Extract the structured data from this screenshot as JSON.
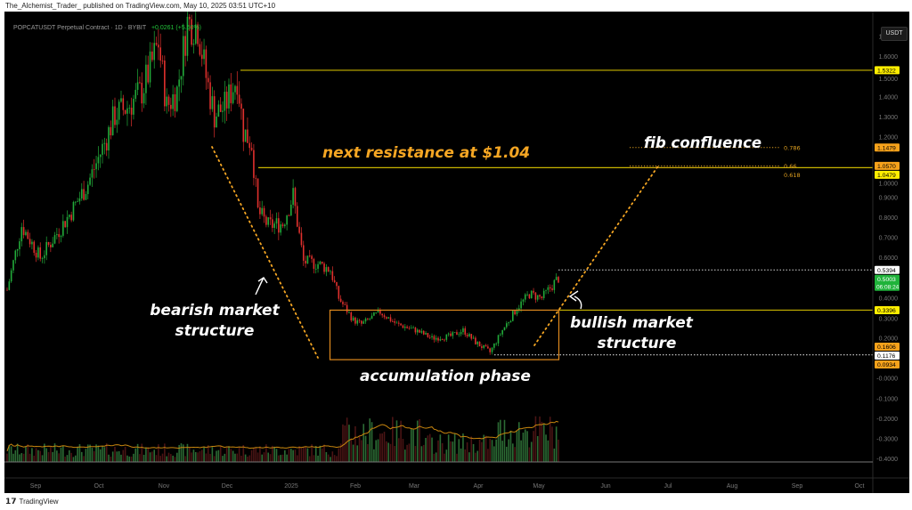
{
  "publisher": "The_Alchemist_Trader_ published on TradingView.com, May 10, 2025 03:51 UTC+10",
  "legend": {
    "symbol": "POPCATUSDT Perpetual Contract · 1D · BYBIT",
    "change": "+0.0261 (+5.50%)"
  },
  "currency_button": "USDT",
  "footer": {
    "logo_icon": "tradingview-logo-icon",
    "brand": "TradingView"
  },
  "colors": {
    "up": "#22ab3a",
    "down": "#e0302d",
    "resistance": "#d4c000",
    "annotation": "#f5a623",
    "box": "#e08a1e",
    "volume_ma": "#c8860e"
  },
  "annotations": {
    "next_resistance": "next resistance at $1.04",
    "fib_confluence": "fib confluence",
    "bearish_1": "bearish market",
    "bearish_2": "structure",
    "accumulation": "accumulation phase",
    "bullish_1": "bullish market",
    "bullish_2": "structure"
  },
  "chart_data": {
    "type": "candlestick",
    "symbol": "POPCATUSDT",
    "interval": "1D",
    "ylim": [
      -0.42,
      1.78
    ],
    "y_ticks": [
      "1.7000",
      "1.6000",
      "1.5000",
      "1.4000",
      "1.3000",
      "1.2000",
      "1.0000",
      "0.9000",
      "0.8000",
      "0.7000",
      "0.6000",
      "0.4000",
      "0.3000",
      "0.2000",
      "-0.0000",
      "-0.1000",
      "-0.2000",
      "-0.3000",
      "-0.4000"
    ],
    "x_ticks": [
      "Sep",
      "Oct",
      "Nov",
      "Dec",
      "2025",
      "Feb",
      "Mar",
      "Apr",
      "May",
      "Jun",
      "Jul",
      "Aug",
      "Sep",
      "Oct"
    ],
    "approx_closes": [
      [
        "2024-08-17",
        0.44
      ],
      [
        "2024-08-24",
        0.76
      ],
      [
        "2024-09-02",
        0.6
      ],
      [
        "2024-09-08",
        0.69
      ],
      [
        "2024-09-17",
        0.83
      ],
      [
        "2024-09-25",
        0.97
      ],
      [
        "2024-10-03",
        1.17
      ],
      [
        "2024-10-08",
        1.31
      ],
      [
        "2024-10-14",
        1.35
      ],
      [
        "2024-10-21",
        1.43
      ],
      [
        "2024-10-25",
        1.54
      ],
      [
        "2024-10-29",
        1.67
      ],
      [
        "2024-11-02",
        1.35
      ],
      [
        "2024-11-07",
        1.43
      ],
      [
        "2024-11-12",
        1.77
      ],
      [
        "2024-11-17",
        1.75
      ],
      [
        "2024-11-21",
        1.5
      ],
      [
        "2024-11-25",
        1.31
      ],
      [
        "2024-11-30",
        1.35
      ],
      [
        "2024-12-06",
        1.5
      ],
      [
        "2024-12-09",
        1.23
      ],
      [
        "2024-12-13",
        1.17
      ],
      [
        "2024-12-16",
        0.83
      ],
      [
        "2024-12-21",
        0.76
      ],
      [
        "2024-12-28",
        0.77
      ],
      [
        "2025-01-02",
        0.91
      ],
      [
        "2025-01-07",
        0.58
      ],
      [
        "2025-01-14",
        0.57
      ],
      [
        "2025-01-20",
        0.54
      ],
      [
        "2025-01-24",
        0.4
      ],
      [
        "2025-01-31",
        0.29
      ],
      [
        "2025-02-04",
        0.27
      ],
      [
        "2025-02-13",
        0.33
      ],
      [
        "2025-02-21",
        0.27
      ],
      [
        "2025-03-02",
        0.24
      ],
      [
        "2025-03-10",
        0.2
      ],
      [
        "2025-03-19",
        0.21
      ],
      [
        "2025-03-25",
        0.24
      ],
      [
        "2025-03-31",
        0.18
      ],
      [
        "2025-04-07",
        0.13
      ],
      [
        "2025-04-13",
        0.24
      ],
      [
        "2025-04-20",
        0.35
      ],
      [
        "2025-04-26",
        0.42
      ],
      [
        "2025-05-02",
        0.4
      ],
      [
        "2025-05-10",
        0.5
      ]
    ],
    "horizontal_levels": [
      {
        "value": 1.5322,
        "label": "1.5322",
        "color": "#ffee00",
        "style": "solid"
      },
      {
        "value": 1.0479,
        "label": "1.0479",
        "color": "#ffee00",
        "style": "solid"
      },
      {
        "value": 0.3396,
        "label": "0.3396",
        "color": "#ffee00",
        "style": "solid"
      },
      {
        "value": 0.5394,
        "label": "0.5394",
        "color": "#ffffff",
        "style": "dotted"
      },
      {
        "value": 0.1176,
        "label": "0.1176",
        "color": "#ffffff",
        "style": "dotted"
      }
    ],
    "fib_levels": [
      {
        "ratio": "0.786",
        "value": 1.1479
      },
      {
        "ratio": "0.66",
        "value": 1.057
      },
      {
        "ratio": "0.618",
        "value": 1.0479
      }
    ],
    "accumulation_box": {
      "from": "2025-01-20",
      "to": "2025-05-10",
      "top": 0.3396,
      "bottom": 0.0934
    },
    "price_labels": [
      {
        "text": "1.5322",
        "value": 1.5322,
        "bg": "#ffee00",
        "fg": "#000"
      },
      {
        "text": "1.1479",
        "value": 1.1479,
        "bg": "#f7a21b",
        "fg": "#000"
      },
      {
        "text": "1.0570",
        "value": 1.057,
        "bg": "#f7a21b",
        "fg": "#000"
      },
      {
        "text": "1.0479",
        "value": 1.0479,
        "bg": "#ffee00",
        "fg": "#000"
      },
      {
        "text": "0.5394",
        "value": 0.5394,
        "bg": "#ffffff",
        "fg": "#000"
      },
      {
        "text": "0.5003",
        "sub": "06:08:24",
        "value": 0.5003,
        "bg": "#1fb33a",
        "fg": "#fff"
      },
      {
        "text": "0.3396",
        "value": 0.3396,
        "bg": "#ffee00",
        "fg": "#000"
      },
      {
        "text": "0.1606",
        "value": 0.1606,
        "bg": "#f7a21b",
        "fg": "#000"
      },
      {
        "text": "0.1176",
        "value": 0.1176,
        "bg": "#ffffff",
        "fg": "#000"
      },
      {
        "text": "0.0934",
        "value": 0.0934,
        "bg": "#f7a21b",
        "fg": "#000"
      }
    ],
    "last_price": 0.5003
  }
}
